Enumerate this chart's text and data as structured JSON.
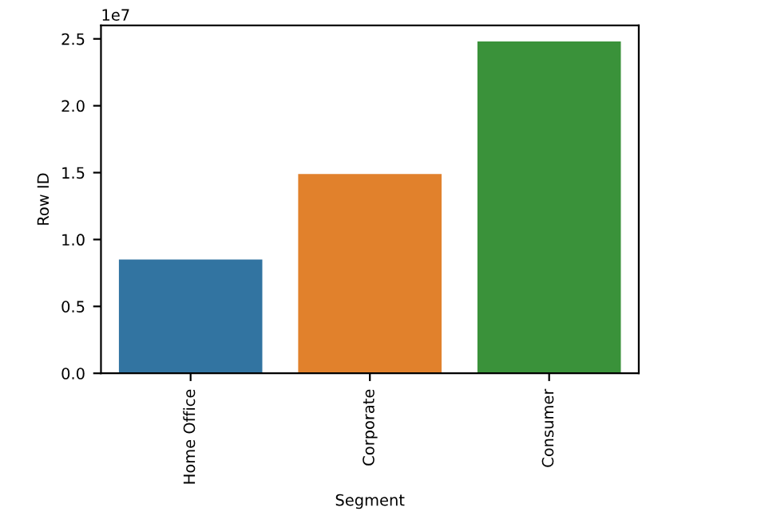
{
  "chart_data": {
    "type": "bar",
    "xlabel": "Segment",
    "ylabel": "Row ID",
    "categories": [
      "Home Office",
      "Corporate",
      "Consumer"
    ],
    "values": [
      0.85,
      1.49,
      2.48
    ],
    "colors": [
      "#3274a1",
      "#e1812c",
      "#3a923a"
    ],
    "ylim": [
      0,
      2.6
    ],
    "yticks": [
      {
        "value": 0,
        "label": "0.0"
      },
      0.5,
      {
        "value": 1,
        "label": "1.0"
      },
      1.5,
      {
        "value": 2,
        "label": "2.0"
      },
      2.5
    ],
    "annotations": [
      "1e7"
    ],
    "grid": false,
    "legend": false
  }
}
